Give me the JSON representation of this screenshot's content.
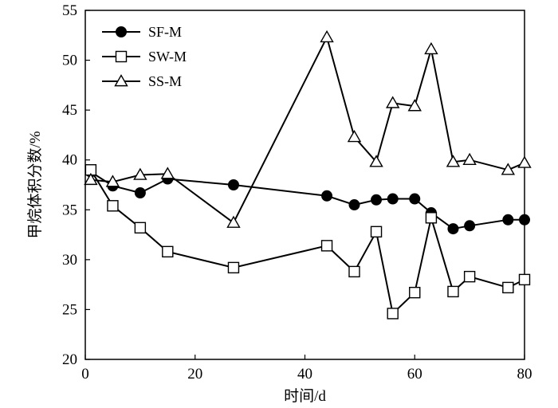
{
  "chart_data": {
    "type": "line",
    "xlabel": "时间/d",
    "ylabel": "甲烷体积分数/%",
    "xlim": [
      0,
      80
    ],
    "ylim": [
      20,
      55
    ],
    "xticks": [
      0,
      20,
      40,
      60,
      80
    ],
    "yticks": [
      20,
      25,
      30,
      35,
      40,
      45,
      50,
      55
    ],
    "grid": false,
    "legend_position": "top-left",
    "series": [
      {
        "name": "SF-M",
        "marker": "filled-circle",
        "x": [
          1,
          5,
          10,
          15,
          27,
          44,
          49,
          53,
          56,
          60,
          63,
          67,
          70,
          77,
          80
        ],
        "y": [
          38.8,
          37.4,
          36.7,
          38.1,
          37.5,
          36.4,
          35.5,
          36.0,
          36.1,
          36.1,
          34.7,
          33.1,
          33.4,
          34.0,
          34.0
        ]
      },
      {
        "name": "SW-M",
        "marker": "open-square",
        "x": [
          1,
          5,
          10,
          15,
          27,
          44,
          49,
          53,
          56,
          60,
          63,
          67,
          70,
          77,
          80
        ],
        "y": [
          39.0,
          35.4,
          33.2,
          30.8,
          29.2,
          31.4,
          28.8,
          32.8,
          24.6,
          26.7,
          34.2,
          26.8,
          28.3,
          27.2,
          28.0
        ]
      },
      {
        "name": "SS-M",
        "marker": "open-triangle",
        "x": [
          1,
          5,
          10,
          15,
          27,
          44,
          49,
          53,
          56,
          60,
          63,
          67,
          70,
          77,
          80
        ],
        "y": [
          38.0,
          37.8,
          38.5,
          38.6,
          33.7,
          52.3,
          42.3,
          39.8,
          45.7,
          45.4,
          51.1,
          39.8,
          40.0,
          39.0,
          39.7
        ]
      }
    ]
  }
}
